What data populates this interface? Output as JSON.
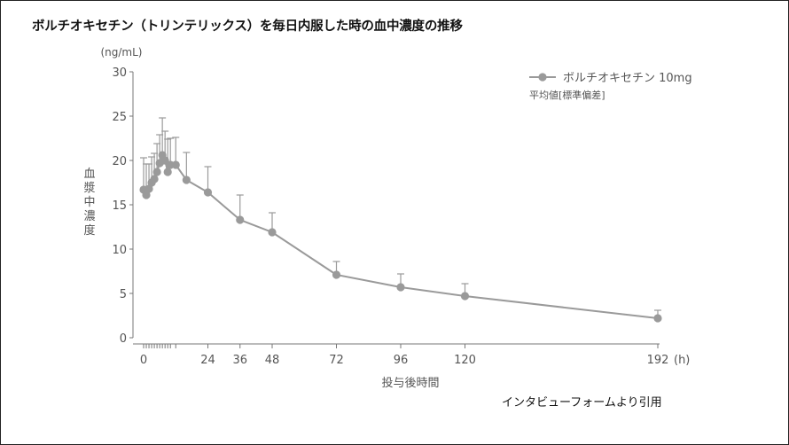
{
  "title": "ボルチオキセチン（トリンテリックス）を毎日内服した時の血中濃度の推移",
  "source_note": "インタビューフォームより引用",
  "colors": {
    "series": "#9a9a9a",
    "axis": "#777777",
    "text": "#555555"
  },
  "chart_data": {
    "type": "line",
    "title": "ボルチオキセチン（トリンテリックス）を毎日内服した時の血中濃度の推移",
    "xlabel": "投与後時間",
    "x_unit": "(h)",
    "ylabel": "血漿中濃度",
    "y_unit": "(ng/mL)",
    "xlim": [
      0,
      192
    ],
    "ylim": [
      0,
      30
    ],
    "x_ticks": [
      0,
      24,
      36,
      48,
      72,
      96,
      120,
      192
    ],
    "x_minor_ticks": [
      1,
      2,
      3,
      4,
      5,
      6,
      7,
      8,
      9,
      10,
      12
    ],
    "y_ticks": [
      0,
      5,
      10,
      15,
      20,
      25,
      30
    ],
    "grid": false,
    "legend_position": "top-right",
    "legend_note": "平均値[標準偏差]",
    "series": [
      {
        "name": "ボルチオキセチン 10mg",
        "x": [
          0,
          1,
          2,
          3,
          4,
          5,
          6,
          7,
          8,
          9,
          10,
          12,
          16,
          24,
          36,
          48,
          72,
          96,
          120,
          192
        ],
        "y": [
          16.7,
          16.1,
          16.8,
          17.5,
          17.9,
          18.7,
          19.7,
          20.6,
          20.0,
          18.7,
          19.5,
          19.5,
          17.8,
          16.4,
          13.3,
          11.9,
          7.1,
          5.7,
          4.7,
          2.2
        ],
        "error": [
          3.6,
          3.5,
          2.8,
          2.9,
          2.9,
          3.2,
          3.2,
          4.2,
          3.3,
          3.7,
          3.0,
          3.1,
          3.1,
          2.9,
          2.8,
          2.2,
          1.5,
          1.5,
          1.4,
          0.9
        ]
      }
    ]
  }
}
